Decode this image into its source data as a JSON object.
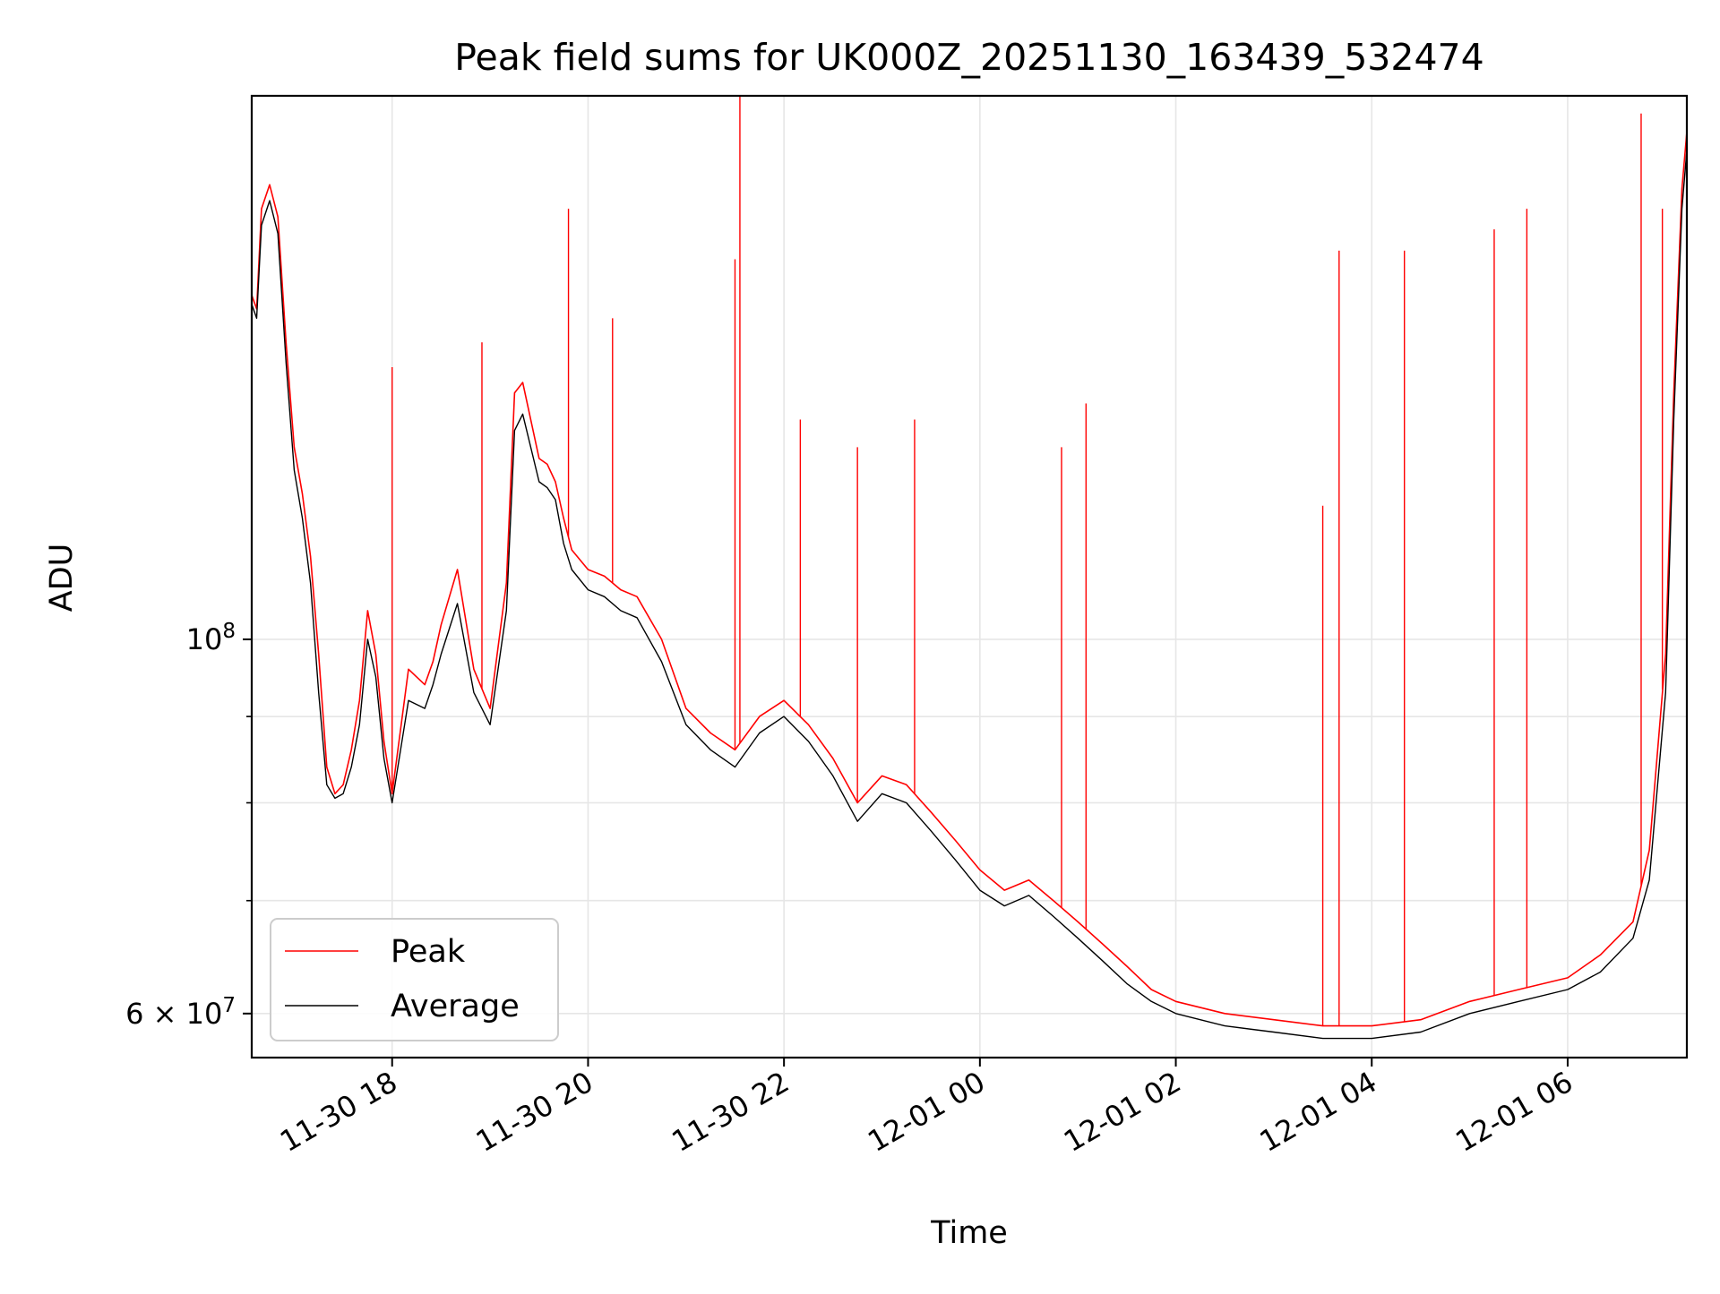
{
  "chart_data": {
    "type": "line",
    "title": "Peak field sums for UK000Z_20251130_163439_532474",
    "xlabel": "Time",
    "ylabel": "ADU",
    "yscale": "log",
    "xlim": [
      "2025-11-30T16:34",
      "2025-12-01T07:13"
    ],
    "ylim": [
      56500000,
      210000000
    ],
    "x_ticks": [
      {
        "value": "2025-11-30T18:00",
        "label": "11-30 18"
      },
      {
        "value": "2025-11-30T20:00",
        "label": "11-30 20"
      },
      {
        "value": "2025-11-30T22:00",
        "label": "11-30 22"
      },
      {
        "value": "2025-12-01T00:00",
        "label": "12-01 00"
      },
      {
        "value": "2025-12-01T02:00",
        "label": "12-01 02"
      },
      {
        "value": "2025-12-01T04:00",
        "label": "12-01 04"
      },
      {
        "value": "2025-12-01T06:00",
        "label": "12-01 06"
      }
    ],
    "y_major_ticks": [
      {
        "value": 60000000,
        "label": "6 × 10",
        "exp": "7"
      },
      {
        "value": 100000000,
        "label": "10",
        "exp": "8"
      }
    ],
    "y_minor_ticks": [
      70000000,
      80000000,
      90000000
    ],
    "grid": true,
    "legend_position": "lower-left",
    "series": [
      {
        "name": "Peak",
        "color": "#ff0000",
        "x": [
          "2025-11-30T16:34",
          "2025-11-30T16:37",
          "2025-11-30T16:40",
          "2025-11-30T16:45",
          "2025-11-30T16:50",
          "2025-11-30T16:55",
          "2025-11-30T17:00",
          "2025-11-30T17:05",
          "2025-11-30T17:10",
          "2025-11-30T17:15",
          "2025-11-30T17:20",
          "2025-11-30T17:25",
          "2025-11-30T17:30",
          "2025-11-30T17:35",
          "2025-11-30T17:40",
          "2025-11-30T17:45",
          "2025-11-30T17:50",
          "2025-11-30T17:55",
          "2025-11-30T18:00",
          "2025-11-30T18:10",
          "2025-11-30T18:20",
          "2025-11-30T18:25",
          "2025-11-30T18:30",
          "2025-11-30T18:40",
          "2025-11-30T18:50",
          "2025-11-30T19:00",
          "2025-11-30T19:10",
          "2025-11-30T19:15",
          "2025-11-30T19:20",
          "2025-11-30T19:30",
          "2025-11-30T19:35",
          "2025-11-30T19:40",
          "2025-11-30T19:45",
          "2025-11-30T19:50",
          "2025-11-30T20:00",
          "2025-11-30T20:10",
          "2025-11-30T20:20",
          "2025-11-30T20:30",
          "2025-11-30T20:45",
          "2025-11-30T21:00",
          "2025-11-30T21:15",
          "2025-11-30T21:30",
          "2025-11-30T21:45",
          "2025-11-30T22:00",
          "2025-11-30T22:15",
          "2025-11-30T22:30",
          "2025-11-30T22:45",
          "2025-11-30T23:00",
          "2025-11-30T23:15",
          "2025-11-30T23:30",
          "2025-11-30T23:45",
          "2025-12-01T00:00",
          "2025-12-01T00:15",
          "2025-12-01T00:30",
          "2025-12-01T00:45",
          "2025-12-01T01:00",
          "2025-12-01T01:15",
          "2025-12-01T01:30",
          "2025-12-01T01:45",
          "2025-12-01T02:00",
          "2025-12-01T02:30",
          "2025-12-01T03:00",
          "2025-12-01T03:30",
          "2025-12-01T04:00",
          "2025-12-01T04:30",
          "2025-12-01T05:00",
          "2025-12-01T05:30",
          "2025-12-01T06:00",
          "2025-12-01T06:20",
          "2025-12-01T06:40",
          "2025-12-01T06:50",
          "2025-12-01T07:00",
          "2025-12-01T07:05",
          "2025-12-01T07:10",
          "2025-12-01T07:13"
        ],
        "y": [
          160000000,
          157000000,
          180000000,
          186000000,
          178000000,
          150000000,
          130000000,
          122000000,
          112000000,
          98000000,
          84000000,
          81000000,
          82000000,
          86000000,
          92000000,
          104000000,
          98000000,
          87000000,
          81000000,
          96000000,
          94000000,
          97000000,
          102000000,
          110000000,
          96000000,
          91000000,
          108000000,
          140000000,
          142000000,
          128000000,
          127000000,
          124000000,
          118000000,
          113000000,
          110000000,
          109000000,
          107000000,
          106000000,
          100000000,
          91000000,
          88000000,
          86000000,
          90000000,
          92000000,
          89000000,
          85000000,
          80000000,
          83000000,
          82000000,
          79000000,
          76000000,
          73000000,
          71000000,
          72000000,
          70000000,
          68000000,
          66000000,
          64000000,
          62000000,
          61000000,
          60000000,
          59500000,
          59000000,
          59000000,
          59500000,
          61000000,
          62000000,
          63000000,
          65000000,
          68000000,
          75000000,
          98000000,
          140000000,
          185000000,
          200000000
        ],
        "spikes": [
          {
            "x": "2025-11-30T18:00",
            "y": 145000000
          },
          {
            "x": "2025-11-30T18:55",
            "y": 150000000
          },
          {
            "x": "2025-11-30T19:48",
            "y": 180000000
          },
          {
            "x": "2025-11-30T20:15",
            "y": 155000000
          },
          {
            "x": "2025-11-30T21:30",
            "y": 168000000
          },
          {
            "x": "2025-11-30T21:33",
            "y": 212000000
          },
          {
            "x": "2025-11-30T22:10",
            "y": 135000000
          },
          {
            "x": "2025-11-30T22:45",
            "y": 130000000
          },
          {
            "x": "2025-11-30T23:20",
            "y": 135000000
          },
          {
            "x": "2025-12-01T00:50",
            "y": 130000000
          },
          {
            "x": "2025-12-01T01:05",
            "y": 138000000
          },
          {
            "x": "2025-12-01T03:30",
            "y": 120000000
          },
          {
            "x": "2025-12-01T03:40",
            "y": 170000000
          },
          {
            "x": "2025-12-01T04:20",
            "y": 170000000
          },
          {
            "x": "2025-12-01T05:15",
            "y": 175000000
          },
          {
            "x": "2025-12-01T05:35",
            "y": 180000000
          },
          {
            "x": "2025-12-01T06:45",
            "y": 205000000
          },
          {
            "x": "2025-12-01T06:58",
            "y": 180000000
          }
        ]
      },
      {
        "name": "Average",
        "color": "#000000",
        "x": [
          "2025-11-30T16:34",
          "2025-11-30T16:37",
          "2025-11-30T16:40",
          "2025-11-30T16:45",
          "2025-11-30T16:50",
          "2025-11-30T16:55",
          "2025-11-30T17:00",
          "2025-11-30T17:05",
          "2025-11-30T17:10",
          "2025-11-30T17:15",
          "2025-11-30T17:20",
          "2025-11-30T17:25",
          "2025-11-30T17:30",
          "2025-11-30T17:35",
          "2025-11-30T17:40",
          "2025-11-30T17:45",
          "2025-11-30T17:50",
          "2025-11-30T17:55",
          "2025-11-30T18:00",
          "2025-11-30T18:10",
          "2025-11-30T18:20",
          "2025-11-30T18:25",
          "2025-11-30T18:30",
          "2025-11-30T18:40",
          "2025-11-30T18:50",
          "2025-11-30T19:00",
          "2025-11-30T19:10",
          "2025-11-30T19:15",
          "2025-11-30T19:20",
          "2025-11-30T19:30",
          "2025-11-30T19:35",
          "2025-11-30T19:40",
          "2025-11-30T19:45",
          "2025-11-30T19:50",
          "2025-11-30T20:00",
          "2025-11-30T20:10",
          "2025-11-30T20:20",
          "2025-11-30T20:30",
          "2025-11-30T20:45",
          "2025-11-30T21:00",
          "2025-11-30T21:15",
          "2025-11-30T21:30",
          "2025-11-30T21:45",
          "2025-11-30T22:00",
          "2025-11-30T22:15",
          "2025-11-30T22:30",
          "2025-11-30T22:45",
          "2025-11-30T23:00",
          "2025-11-30T23:15",
          "2025-11-30T23:30",
          "2025-11-30T23:45",
          "2025-12-01T00:00",
          "2025-12-01T00:15",
          "2025-12-01T00:30",
          "2025-12-01T00:45",
          "2025-12-01T01:00",
          "2025-12-01T01:15",
          "2025-12-01T01:30",
          "2025-12-01T01:45",
          "2025-12-01T02:00",
          "2025-12-01T02:30",
          "2025-12-01T03:00",
          "2025-12-01T03:30",
          "2025-12-01T04:00",
          "2025-12-01T04:30",
          "2025-12-01T05:00",
          "2025-12-01T05:30",
          "2025-12-01T06:00",
          "2025-12-01T06:20",
          "2025-12-01T06:40",
          "2025-12-01T06:50",
          "2025-12-01T07:00",
          "2025-12-01T07:05",
          "2025-12-01T07:10",
          "2025-12-01T07:13"
        ],
        "y": [
          158000000,
          155000000,
          176000000,
          182000000,
          174000000,
          146000000,
          126000000,
          118000000,
          108000000,
          93000000,
          82000000,
          80500000,
          81000000,
          84000000,
          89000000,
          100000000,
          95000000,
          85000000,
          80000000,
          92000000,
          91000000,
          94000000,
          98000000,
          105000000,
          93000000,
          89000000,
          104000000,
          133000000,
          136000000,
          124000000,
          123000000,
          121000000,
          114000000,
          110000000,
          107000000,
          106000000,
          104000000,
          103000000,
          97000000,
          89000000,
          86000000,
          84000000,
          88000000,
          90000000,
          87000000,
          83000000,
          78000000,
          81000000,
          80000000,
          77000000,
          74000000,
          71000000,
          69500000,
          70500000,
          68500000,
          66500000,
          64500000,
          62500000,
          61000000,
          60000000,
          59000000,
          58500000,
          58000000,
          58000000,
          58500000,
          60000000,
          61000000,
          62000000,
          63500000,
          66500000,
          72000000,
          93000000,
          135000000,
          180000000,
          195000000
        ]
      }
    ]
  }
}
